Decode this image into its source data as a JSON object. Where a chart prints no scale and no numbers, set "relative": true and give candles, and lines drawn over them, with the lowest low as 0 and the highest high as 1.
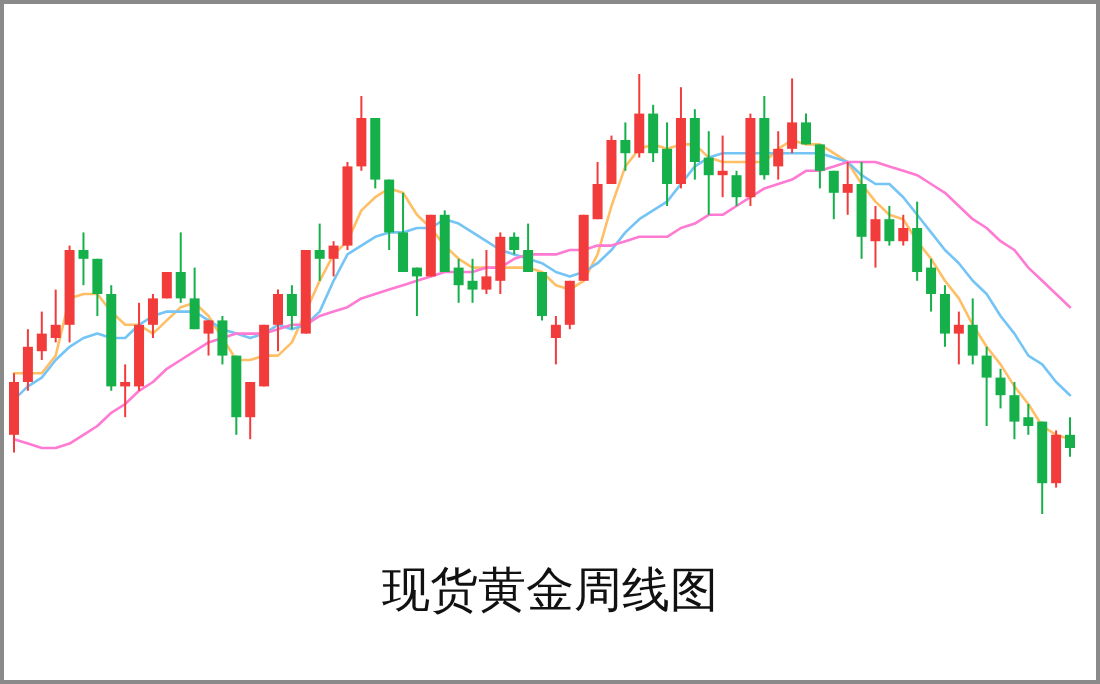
{
  "chart_data": {
    "type": "candlestick",
    "title": "现货黄金周线图",
    "relative": true,
    "categories": [
      null,
      null,
      null,
      null,
      null,
      null,
      null,
      null,
      null,
      null,
      null,
      null,
      null,
      null,
      null,
      null,
      null,
      null,
      null,
      null,
      null,
      null,
      null,
      null,
      null,
      null,
      null,
      null,
      null,
      null,
      null,
      null,
      null,
      null,
      null,
      null,
      null,
      null,
      null,
      null,
      null,
      null,
      null,
      null,
      null,
      null,
      null,
      null,
      null,
      null,
      null,
      null,
      null,
      null,
      null,
      null,
      null,
      null,
      null,
      null,
      null,
      null,
      null,
      null,
      null,
      null,
      null,
      null,
      null,
      null,
      null,
      null,
      null,
      null,
      null,
      null,
      null
    ],
    "ohlc": [
      [
        0.18,
        0.32,
        0.14,
        0.3
      ],
      [
        0.3,
        0.42,
        0.28,
        0.38
      ],
      [
        0.37,
        0.46,
        0.35,
        0.41
      ],
      [
        0.4,
        0.51,
        0.39,
        0.43
      ],
      [
        0.43,
        0.61,
        0.39,
        0.6
      ],
      [
        0.6,
        0.64,
        0.52,
        0.58
      ],
      [
        0.58,
        0.58,
        0.45,
        0.5
      ],
      [
        0.5,
        0.52,
        0.28,
        0.29
      ],
      [
        0.29,
        0.34,
        0.22,
        0.3
      ],
      [
        0.29,
        0.48,
        0.28,
        0.43
      ],
      [
        0.43,
        0.5,
        0.4,
        0.49
      ],
      [
        0.49,
        0.55,
        0.49,
        0.55
      ],
      [
        0.55,
        0.64,
        0.48,
        0.49
      ],
      [
        0.49,
        0.56,
        0.42,
        0.42
      ],
      [
        0.41,
        0.44,
        0.36,
        0.44
      ],
      [
        0.44,
        0.45,
        0.34,
        0.36
      ],
      [
        0.36,
        0.36,
        0.18,
        0.22
      ],
      [
        0.22,
        0.3,
        0.17,
        0.3
      ],
      [
        0.29,
        0.43,
        0.29,
        0.43
      ],
      [
        0.43,
        0.51,
        0.37,
        0.5
      ],
      [
        0.5,
        0.52,
        0.42,
        0.45
      ],
      [
        0.41,
        0.6,
        0.41,
        0.6
      ],
      [
        0.6,
        0.66,
        0.53,
        0.58
      ],
      [
        0.58,
        0.62,
        0.54,
        0.61
      ],
      [
        0.61,
        0.8,
        0.6,
        0.79
      ],
      [
        0.79,
        0.95,
        0.78,
        0.9
      ],
      [
        0.9,
        0.9,
        0.74,
        0.76
      ],
      [
        0.76,
        0.76,
        0.6,
        0.64
      ],
      [
        0.64,
        0.73,
        0.55,
        0.55
      ],
      [
        0.56,
        0.56,
        0.45,
        0.54
      ],
      [
        0.54,
        0.68,
        0.54,
        0.68
      ],
      [
        0.68,
        0.69,
        0.55,
        0.55
      ],
      [
        0.56,
        0.58,
        0.48,
        0.52
      ],
      [
        0.53,
        0.58,
        0.48,
        0.51
      ],
      [
        0.51,
        0.6,
        0.5,
        0.54
      ],
      [
        0.53,
        0.64,
        0.5,
        0.63
      ],
      [
        0.63,
        0.64,
        0.59,
        0.6
      ],
      [
        0.6,
        0.66,
        0.55,
        0.55
      ],
      [
        0.55,
        0.55,
        0.44,
        0.45
      ],
      [
        0.4,
        0.45,
        0.34,
        0.43
      ],
      [
        0.43,
        0.53,
        0.42,
        0.53
      ],
      [
        0.53,
        0.68,
        0.53,
        0.68
      ],
      [
        0.67,
        0.8,
        0.67,
        0.75
      ],
      [
        0.75,
        0.86,
        0.75,
        0.85
      ],
      [
        0.85,
        0.89,
        0.78,
        0.82
      ],
      [
        0.82,
        1.0,
        0.81,
        0.91
      ],
      [
        0.91,
        0.93,
        0.8,
        0.82
      ],
      [
        0.83,
        0.89,
        0.7,
        0.75
      ],
      [
        0.75,
        0.97,
        0.74,
        0.9
      ],
      [
        0.9,
        0.92,
        0.76,
        0.8
      ],
      [
        0.81,
        0.87,
        0.68,
        0.77
      ],
      [
        0.77,
        0.86,
        0.72,
        0.78
      ],
      [
        0.77,
        0.78,
        0.7,
        0.72
      ],
      [
        0.72,
        0.91,
        0.7,
        0.9
      ],
      [
        0.9,
        0.95,
        0.76,
        0.77
      ],
      [
        0.79,
        0.87,
        0.76,
        0.83
      ],
      [
        0.83,
        0.99,
        0.82,
        0.89
      ],
      [
        0.89,
        0.91,
        0.84,
        0.84
      ],
      [
        0.84,
        0.84,
        0.74,
        0.78
      ],
      [
        0.78,
        0.78,
        0.67,
        0.73
      ],
      [
        0.73,
        0.8,
        0.68,
        0.75
      ],
      [
        0.75,
        0.8,
        0.58,
        0.63
      ],
      [
        0.62,
        0.7,
        0.56,
        0.67
      ],
      [
        0.67,
        0.7,
        0.61,
        0.62
      ],
      [
        0.62,
        0.68,
        0.61,
        0.65
      ],
      [
        0.65,
        0.71,
        0.53,
        0.55
      ],
      [
        0.56,
        0.58,
        0.46,
        0.5
      ],
      [
        0.5,
        0.52,
        0.38,
        0.41
      ],
      [
        0.41,
        0.46,
        0.34,
        0.43
      ],
      [
        0.43,
        0.49,
        0.34,
        0.36
      ],
      [
        0.36,
        0.38,
        0.2,
        0.31
      ],
      [
        0.31,
        0.33,
        0.24,
        0.27
      ],
      [
        0.27,
        0.3,
        0.17,
        0.21
      ],
      [
        0.22,
        0.25,
        0.18,
        0.2
      ],
      [
        0.21,
        0.21,
        0.0,
        0.07
      ],
      [
        0.07,
        0.19,
        0.06,
        0.18
      ],
      [
        0.18,
        0.22,
        0.13,
        0.15
      ]
    ],
    "colors": [
      "#f23b3b",
      "#f23b3b",
      "#f23b3b",
      "#f23b3b",
      "#f23b3b",
      "#16b04a",
      "#16b04a",
      "#16b04a",
      "#f23b3b",
      "#f23b3b",
      "#f23b3b",
      "#f23b3b",
      "#16b04a",
      "#16b04a",
      "#f23b3b",
      "#16b04a",
      "#16b04a",
      "#f23b3b",
      "#f23b3b",
      "#f23b3b",
      "#16b04a",
      "#f23b3b",
      "#16b04a",
      "#f23b3b",
      "#f23b3b",
      "#f23b3b",
      "#16b04a",
      "#16b04a",
      "#16b04a",
      "#16b04a",
      "#f23b3b",
      "#16b04a",
      "#16b04a",
      "#16b04a",
      "#f23b3b",
      "#f23b3b",
      "#16b04a",
      "#16b04a",
      "#16b04a",
      "#f23b3b",
      "#f23b3b",
      "#f23b3b",
      "#f23b3b",
      "#f23b3b",
      "#16b04a",
      "#f23b3b",
      "#16b04a",
      "#16b04a",
      "#f23b3b",
      "#16b04a",
      "#16b04a",
      "#f23b3b",
      "#16b04a",
      "#f23b3b",
      "#16b04a",
      "#f23b3b",
      "#f23b3b",
      "#16b04a",
      "#16b04a",
      "#16b04a",
      "#f23b3b",
      "#16b04a",
      "#f23b3b",
      "#16b04a",
      "#f23b3b",
      "#16b04a",
      "#16b04a",
      "#16b04a",
      "#f23b3b",
      "#16b04a",
      "#16b04a",
      "#16b04a",
      "#16b04a",
      "#16b04a",
      "#16b04a",
      "#f23b3b",
      "#16b04a"
    ],
    "series": [
      {
        "type": "line",
        "color": "#ffbf66",
        "values": [
          0.32,
          0.32,
          0.32,
          0.36,
          0.49,
          0.5,
          0.5,
          0.46,
          0.43,
          0.43,
          0.41,
          0.44,
          0.47,
          0.48,
          0.45,
          0.4,
          0.35,
          0.35,
          0.36,
          0.36,
          0.39,
          0.46,
          0.53,
          0.59,
          0.62,
          0.69,
          0.72,
          0.74,
          0.73,
          0.68,
          0.65,
          0.61,
          0.58,
          0.56,
          0.56,
          0.56,
          0.56,
          0.56,
          0.55,
          0.52,
          0.51,
          0.53,
          0.59,
          0.7,
          0.79,
          0.83,
          0.84,
          0.83,
          0.84,
          0.84,
          0.81,
          0.8,
          0.8,
          0.8,
          0.8,
          0.83,
          0.85,
          0.84,
          0.84,
          0.82,
          0.8,
          0.75,
          0.71,
          0.68,
          0.67,
          0.62,
          0.58,
          0.53,
          0.49,
          0.43,
          0.38,
          0.34,
          0.29,
          0.25,
          0.2,
          0.18,
          0.17
        ]
      },
      {
        "type": "line",
        "color": "#74c4f5",
        "values": [
          0.26,
          0.29,
          0.31,
          0.35,
          0.38,
          0.4,
          0.41,
          0.4,
          0.4,
          0.43,
          0.45,
          0.46,
          0.46,
          0.46,
          0.44,
          0.42,
          0.41,
          0.4,
          0.41,
          0.43,
          0.42,
          0.43,
          0.46,
          0.53,
          0.59,
          0.61,
          0.63,
          0.64,
          0.64,
          0.65,
          0.65,
          0.67,
          0.66,
          0.64,
          0.62,
          0.6,
          0.59,
          0.58,
          0.57,
          0.55,
          0.54,
          0.55,
          0.57,
          0.6,
          0.64,
          0.67,
          0.69,
          0.71,
          0.75,
          0.79,
          0.81,
          0.82,
          0.82,
          0.82,
          0.82,
          0.82,
          0.82,
          0.82,
          0.82,
          0.81,
          0.8,
          0.77,
          0.75,
          0.75,
          0.72,
          0.68,
          0.64,
          0.6,
          0.57,
          0.53,
          0.5,
          0.45,
          0.41,
          0.36,
          0.34,
          0.3,
          0.27
        ]
      },
      {
        "type": "line",
        "color": "#ff7ad2",
        "values": [
          0.17,
          0.16,
          0.15,
          0.15,
          0.16,
          0.18,
          0.2,
          0.23,
          0.25,
          0.28,
          0.3,
          0.33,
          0.35,
          0.37,
          0.39,
          0.4,
          0.41,
          0.41,
          0.41,
          0.42,
          0.43,
          0.43,
          0.45,
          0.46,
          0.47,
          0.49,
          0.5,
          0.51,
          0.52,
          0.53,
          0.54,
          0.55,
          0.55,
          0.55,
          0.56,
          0.56,
          0.58,
          0.59,
          0.59,
          0.59,
          0.6,
          0.6,
          0.61,
          0.61,
          0.62,
          0.63,
          0.63,
          0.63,
          0.65,
          0.66,
          0.68,
          0.68,
          0.7,
          0.72,
          0.74,
          0.75,
          0.76,
          0.78,
          0.78,
          0.79,
          0.8,
          0.8,
          0.8,
          0.79,
          0.78,
          0.77,
          0.75,
          0.73,
          0.7,
          0.67,
          0.65,
          0.62,
          0.6,
          0.56,
          0.53,
          0.5,
          0.47
        ]
      }
    ]
  }
}
